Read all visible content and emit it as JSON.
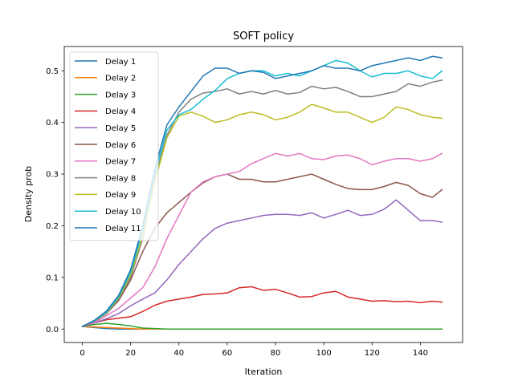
{
  "chart_data": {
    "type": "line",
    "title": "SOFT policy",
    "xlabel": "Iteration",
    "ylabel": "Density prob",
    "xlim": [
      -7.5,
      157.5
    ],
    "ylim": [
      -0.026,
      0.547
    ],
    "xticks": [
      0,
      20,
      40,
      60,
      80,
      100,
      120,
      140
    ],
    "xtick_labels": [
      "0",
      "20",
      "40",
      "60",
      "80",
      "100",
      "120",
      "140"
    ],
    "yticks": [
      0.0,
      0.1,
      0.2,
      0.3,
      0.4,
      0.5
    ],
    "ytick_labels": [
      "0.0",
      "0.1",
      "0.2",
      "0.3",
      "0.4",
      "0.5"
    ],
    "grid": false,
    "legend_position": "upper left",
    "x": [
      0,
      5,
      10,
      15,
      20,
      25,
      30,
      35,
      40,
      45,
      50,
      55,
      60,
      65,
      70,
      75,
      80,
      85,
      90,
      95,
      100,
      105,
      110,
      115,
      120,
      125,
      130,
      135,
      140,
      145,
      149
    ],
    "series": [
      {
        "name": "Delay 1",
        "color": "#1f77b4",
        "values": [
          0.005,
          0.003,
          0.001,
          0.0,
          0.0,
          0.0,
          0.0,
          0.0,
          0.0,
          0.0,
          0.0,
          0.0,
          0.0,
          0.0,
          0.0,
          0.0,
          0.0,
          0.0,
          0.0,
          0.0,
          0.0,
          0.0,
          0.0,
          0.0,
          0.0,
          0.0,
          0.0,
          0.0,
          0.0,
          0.0,
          0.0
        ]
      },
      {
        "name": "Delay 2",
        "color": "#ff7f0e",
        "values": [
          0.005,
          0.004,
          0.003,
          0.002,
          0.001,
          0.0,
          0.0,
          0.0,
          0.0,
          0.0,
          0.0,
          0.0,
          0.0,
          0.0,
          0.0,
          0.0,
          0.0,
          0.0,
          0.0,
          0.0,
          0.0,
          0.0,
          0.0,
          0.0,
          0.0,
          0.0,
          0.0,
          0.0,
          0.0,
          0.0,
          0.0
        ]
      },
      {
        "name": "Delay 3",
        "color": "#2ca02c",
        "values": [
          0.005,
          0.009,
          0.011,
          0.009,
          0.006,
          0.002,
          0.001,
          0.0,
          0.0,
          0.0,
          0.0,
          0.0,
          0.0,
          0.0,
          0.0,
          0.0,
          0.0,
          0.0,
          0.0,
          0.0,
          0.0,
          0.0,
          0.0,
          0.0,
          0.0,
          0.0,
          0.0,
          0.0,
          0.0,
          0.0,
          0.0
        ]
      },
      {
        "name": "Delay 4",
        "color": "#d62728",
        "values": [
          0.005,
          0.012,
          0.018,
          0.021,
          0.024,
          0.034,
          0.046,
          0.054,
          0.058,
          0.062,
          0.067,
          0.068,
          0.07,
          0.08,
          0.082,
          0.075,
          0.077,
          0.07,
          0.062,
          0.063,
          0.07,
          0.073,
          0.062,
          0.058,
          0.054,
          0.055,
          0.053,
          0.054,
          0.051,
          0.054,
          0.052
        ]
      },
      {
        "name": "Delay 5",
        "color": "#9467bd",
        "values": [
          0.005,
          0.012,
          0.02,
          0.03,
          0.045,
          0.058,
          0.07,
          0.095,
          0.125,
          0.15,
          0.175,
          0.195,
          0.205,
          0.21,
          0.215,
          0.22,
          0.222,
          0.222,
          0.22,
          0.225,
          0.215,
          0.222,
          0.23,
          0.22,
          0.222,
          0.232,
          0.25,
          0.23,
          0.21,
          0.21,
          0.207
        ]
      },
      {
        "name": "Delay 6",
        "color": "#8c564b",
        "values": [
          0.005,
          0.015,
          0.03,
          0.055,
          0.095,
          0.15,
          0.195,
          0.225,
          0.245,
          0.265,
          0.283,
          0.295,
          0.3,
          0.29,
          0.29,
          0.285,
          0.285,
          0.29,
          0.295,
          0.3,
          0.29,
          0.28,
          0.272,
          0.27,
          0.27,
          0.276,
          0.284,
          0.278,
          0.262,
          0.255,
          0.27
        ]
      },
      {
        "name": "Delay 7",
        "color": "#e377c2",
        "values": [
          0.005,
          0.013,
          0.026,
          0.04,
          0.06,
          0.08,
          0.12,
          0.175,
          0.22,
          0.265,
          0.285,
          0.295,
          0.3,
          0.305,
          0.32,
          0.33,
          0.34,
          0.335,
          0.34,
          0.33,
          0.328,
          0.335,
          0.337,
          0.33,
          0.318,
          0.325,
          0.33,
          0.33,
          0.325,
          0.33,
          0.34
        ]
      },
      {
        "name": "Delay 8",
        "color": "#7f7f7f",
        "values": [
          0.005,
          0.015,
          0.03,
          0.058,
          0.1,
          0.175,
          0.29,
          0.375,
          0.42,
          0.445,
          0.457,
          0.46,
          0.465,
          0.455,
          0.46,
          0.455,
          0.462,
          0.455,
          0.458,
          0.47,
          0.465,
          0.468,
          0.46,
          0.45,
          0.45,
          0.455,
          0.46,
          0.475,
          0.47,
          0.478,
          0.482
        ]
      },
      {
        "name": "Delay 9",
        "color": "#bcbd22",
        "values": [
          0.005,
          0.016,
          0.032,
          0.06,
          0.105,
          0.18,
          0.285,
          0.37,
          0.412,
          0.42,
          0.412,
          0.4,
          0.405,
          0.415,
          0.42,
          0.415,
          0.405,
          0.41,
          0.42,
          0.435,
          0.428,
          0.42,
          0.42,
          0.41,
          0.4,
          0.41,
          0.43,
          0.425,
          0.415,
          0.41,
          0.408
        ]
      },
      {
        "name": "Delay 10",
        "color": "#17becf",
        "values": [
          0.005,
          0.016,
          0.033,
          0.062,
          0.11,
          0.19,
          0.3,
          0.385,
          0.415,
          0.425,
          0.445,
          0.462,
          0.485,
          0.495,
          0.5,
          0.5,
          0.49,
          0.495,
          0.49,
          0.5,
          0.51,
          0.52,
          0.515,
          0.5,
          0.488,
          0.495,
          0.495,
          0.5,
          0.49,
          0.485,
          0.5
        ]
      },
      {
        "name": "Delay 11",
        "color": "#1f77b4",
        "values": [
          0.005,
          0.017,
          0.035,
          0.065,
          0.115,
          0.2,
          0.31,
          0.395,
          0.43,
          0.46,
          0.49,
          0.505,
          0.505,
          0.495,
          0.5,
          0.497,
          0.485,
          0.49,
          0.495,
          0.5,
          0.51,
          0.505,
          0.505,
          0.5,
          0.51,
          0.515,
          0.52,
          0.525,
          0.52,
          0.528,
          0.525
        ]
      }
    ]
  }
}
